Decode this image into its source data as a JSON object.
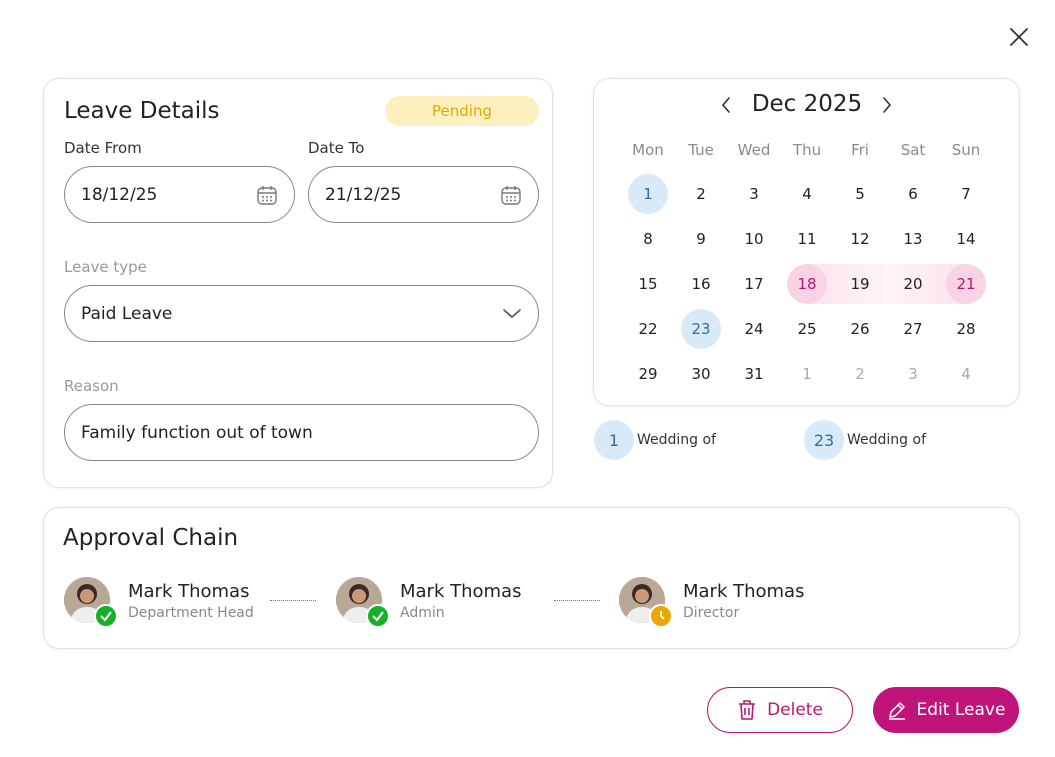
{
  "leave_details": {
    "title": "Leave Details",
    "status": "Pending",
    "date_from": {
      "label": "Date From",
      "value": "18/12/25"
    },
    "date_to": {
      "label": "Date To",
      "value": "21/12/25"
    },
    "leave_type": {
      "label": "Leave type",
      "value": "Paid Leave"
    },
    "reason": {
      "label": "Reason",
      "value": "Family function out of town"
    }
  },
  "calendar": {
    "month": "Dec 2025",
    "weekdays": [
      "Mon",
      "Tue",
      "Wed",
      "Thu",
      "Fri",
      "Sat",
      "Sun"
    ],
    "weeks": [
      [
        1,
        2,
        3,
        4,
        5,
        6,
        7
      ],
      [
        8,
        9,
        10,
        11,
        12,
        13,
        14
      ],
      [
        15,
        16,
        17,
        18,
        19,
        20,
        21
      ],
      [
        22,
        23,
        24,
        25,
        26,
        27,
        28
      ],
      [
        29,
        30,
        31,
        1,
        2,
        3,
        4
      ]
    ],
    "selected_range": [
      18,
      21
    ]
  },
  "holidays": [
    {
      "day": 1,
      "label": "Wedding of"
    },
    {
      "day": 23,
      "label": "Wedding of"
    }
  ],
  "approval_chain": {
    "title": "Approval Chain",
    "approvers": [
      {
        "name": "Mark Thomas",
        "role": "Department Head",
        "status": "approved"
      },
      {
        "name": "Mark Thomas",
        "role": "Admin",
        "status": "approved"
      },
      {
        "name": "Mark Thomas",
        "role": "Director",
        "status": "pending"
      }
    ]
  },
  "actions": {
    "delete": "Delete",
    "edit": "Edit Leave"
  }
}
